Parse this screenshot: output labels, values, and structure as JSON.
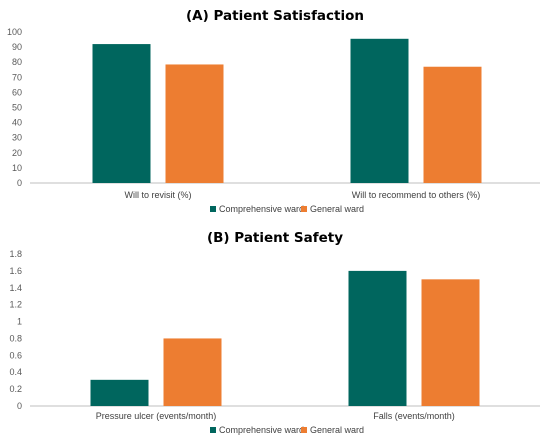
{
  "chart_data": [
    {
      "type": "bar",
      "title": "(A) Patient Satisfaction",
      "categories": [
        "Will to revisit (%)",
        "Will to recommend to others (%)"
      ],
      "series": [
        {
          "name": "Comprehensive ward",
          "values": [
            92,
            95.5
          ]
        },
        {
          "name": "General ward",
          "values": [
            78.5,
            77
          ]
        }
      ],
      "ylim": [
        0,
        100
      ],
      "yticks": [
        "0",
        "10",
        "20",
        "30",
        "40",
        "50",
        "60",
        "70",
        "80",
        "90",
        "100"
      ],
      "grid": false,
      "legend": "bottom"
    },
    {
      "type": "bar",
      "title": "(B) Patient Safety",
      "categories": [
        "Pressure ulcer (events/month)",
        "Falls (events/month)"
      ],
      "series": [
        {
          "name": "Comprehensive ward",
          "values": [
            0.31,
            1.6
          ]
        },
        {
          "name": "General ward",
          "values": [
            0.8,
            1.5
          ]
        }
      ],
      "ylim": [
        0,
        1.8
      ],
      "yticks": [
        "0",
        "0.2",
        "0.4",
        "0.6",
        "0.8",
        "1",
        "1.2",
        "1.4",
        "1.6",
        "1.8"
      ],
      "grid": false,
      "legend": "bottom"
    }
  ],
  "colors": {
    "series": [
      "#00665E",
      "#ED7D31"
    ],
    "axis": "#BFBFBF"
  }
}
